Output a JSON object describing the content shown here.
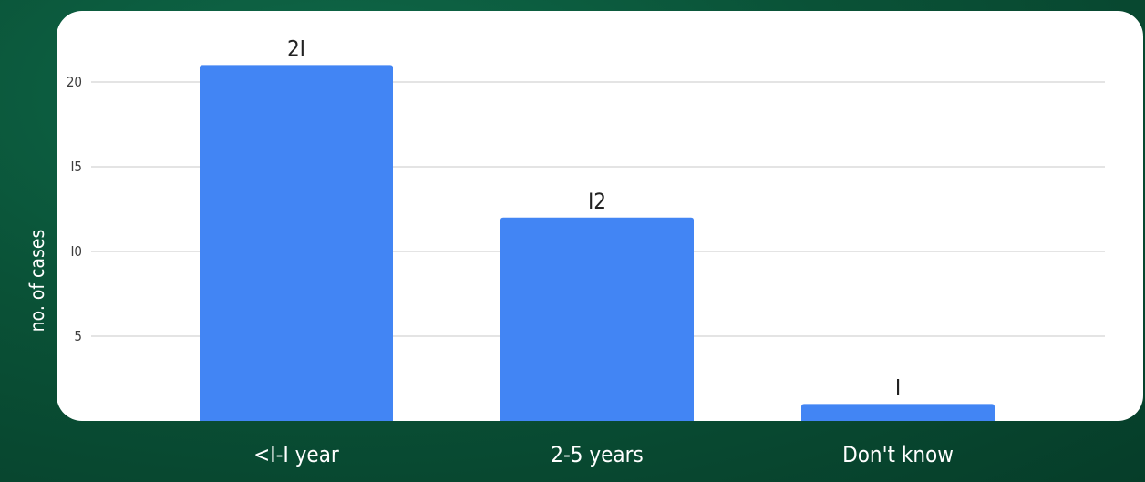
{
  "chart_data": {
    "type": "bar",
    "categories": [
      "<I-I year",
      "2-5 years",
      "Don't know"
    ],
    "values": [
      21,
      12,
      1
    ],
    "data_labels": [
      "2I",
      "I2",
      "I"
    ],
    "title": "",
    "xlabel": "",
    "ylabel": "no. of cases",
    "ylim": [
      0,
      22
    ],
    "y_ticks": [
      5,
      10,
      15,
      20
    ],
    "y_tick_labels": [
      "5",
      "I0",
      "I5",
      "20"
    ],
    "grid": true,
    "legend": "none",
    "bar_color": "#4285f4",
    "background_color": "#0a5237",
    "plot_background_color": "#ffffff"
  }
}
